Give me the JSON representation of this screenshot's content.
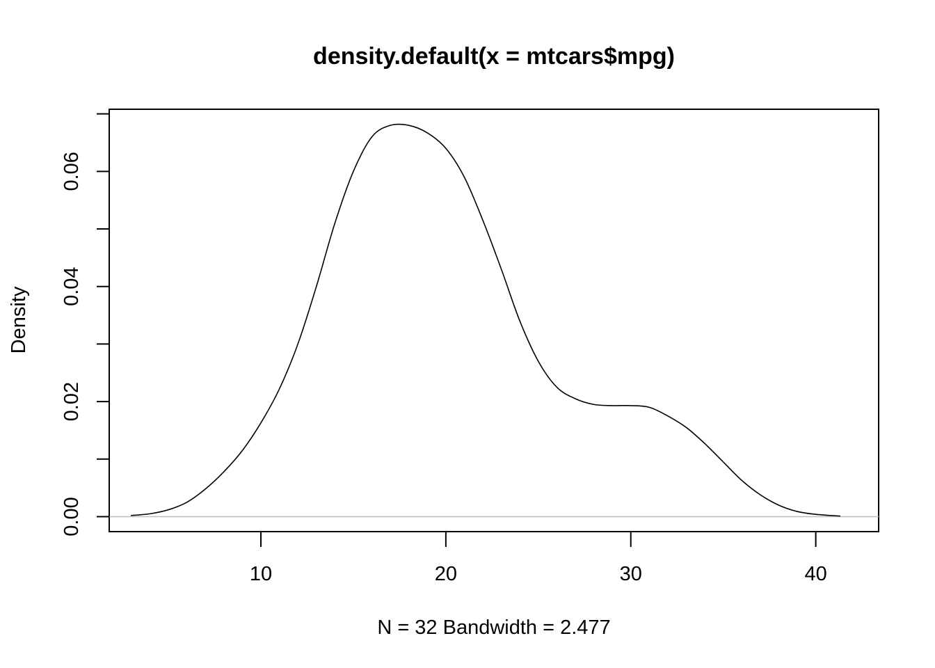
{
  "chart_data": {
    "type": "line",
    "title": "density.default(x = mtcars$mpg)",
    "xlabel": "N = 32   Bandwidth = 2.477",
    "ylabel": "Density",
    "xlim": [
      1.8,
      43.4
    ],
    "ylim": [
      -0.0026,
      0.0708
    ],
    "x_ticks": [
      10,
      20,
      30,
      40
    ],
    "x_tick_labels": [
      "10",
      "20",
      "30",
      "40"
    ],
    "y_ticks": [
      0.0,
      0.01,
      0.02,
      0.03,
      0.04,
      0.05,
      0.06,
      0.07
    ],
    "y_tick_labels": [
      "0.00",
      "",
      "0.02",
      "",
      "0.04",
      "",
      "0.06",
      ""
    ],
    "baseline": 0,
    "grid": false,
    "legend": "none",
    "colors": {
      "line": "#000000",
      "baseline": "#bebebe",
      "box": "#000000"
    },
    "series": [
      {
        "x": [
          2.97,
          4.0,
          5.0,
          6.0,
          7.0,
          8.0,
          9.0,
          10.0,
          11.0,
          12.0,
          13.0,
          14.0,
          15.0,
          16.0,
          17.0,
          18.0,
          19.0,
          20.0,
          21.0,
          22.0,
          23.0,
          24.0,
          25.0,
          26.0,
          27.0,
          28.0,
          29.0,
          30.0,
          31.0,
          32.0,
          33.0,
          34.0,
          35.0,
          36.0,
          37.0,
          38.0,
          39.0,
          40.0,
          41.33
        ],
        "values": [
          0.0002,
          0.0005,
          0.0012,
          0.0025,
          0.0048,
          0.0078,
          0.0115,
          0.0163,
          0.0222,
          0.03,
          0.04,
          0.051,
          0.06,
          0.066,
          0.068,
          0.068,
          0.0667,
          0.064,
          0.059,
          0.0515,
          0.043,
          0.034,
          0.027,
          0.0225,
          0.0205,
          0.0195,
          0.0193,
          0.0193,
          0.019,
          0.0175,
          0.0155,
          0.0127,
          0.0095,
          0.0063,
          0.0038,
          0.002,
          0.0009,
          0.0004,
          0.0001
        ]
      }
    ]
  }
}
